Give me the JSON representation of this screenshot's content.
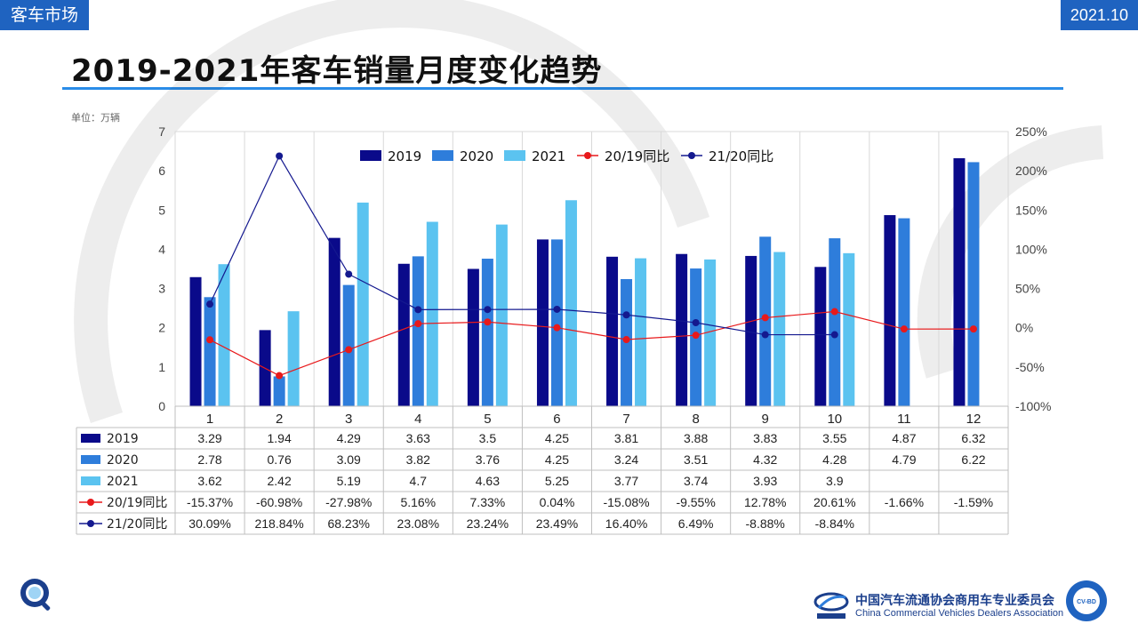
{
  "header": {
    "section": "客车市场",
    "date": "2021.10"
  },
  "title": "2019-2021年客车销量月度变化趋势",
  "unit_note": "单位：万辆",
  "footer": {
    "org_cn": "中国汽车流通协会商用车专业委员会",
    "org_en": "China Commercial Vehicles Dealers Association"
  },
  "colors": {
    "c2019": "#0a0a8a",
    "c2020": "#2e7ddb",
    "c2021": "#5bc3f0",
    "c20_19": "#e8191b",
    "c21_20": "#14198f",
    "accent": "#1f63c0"
  },
  "chart_data": {
    "type": "bar",
    "categories": [
      "1",
      "2",
      "3",
      "4",
      "5",
      "6",
      "7",
      "8",
      "9",
      "10",
      "11",
      "12"
    ],
    "y_left": {
      "min": 0,
      "max": 7,
      "ticks": [
        "0",
        "1",
        "2",
        "3",
        "4",
        "5",
        "6",
        "7"
      ]
    },
    "y_right": {
      "min": -100,
      "max": 250,
      "ticks": [
        "-100%",
        "-50%",
        "0%",
        "50%",
        "100%",
        "150%",
        "200%",
        "250%"
      ]
    },
    "legend_position": "top",
    "series": [
      {
        "name": "2019",
        "kind": "bar",
        "axis": "left",
        "values": [
          3.29,
          1.94,
          4.29,
          3.63,
          3.5,
          4.25,
          3.81,
          3.88,
          3.83,
          3.55,
          4.87,
          6.32
        ],
        "labels": [
          "3.29",
          "1.94",
          "4.29",
          "3.63",
          "3.5",
          "4.25",
          "3.81",
          "3.88",
          "3.83",
          "3.55",
          "4.87",
          "6.32"
        ]
      },
      {
        "name": "2020",
        "kind": "bar",
        "axis": "left",
        "values": [
          2.78,
          0.76,
          3.09,
          3.82,
          3.76,
          4.25,
          3.24,
          3.51,
          4.32,
          4.28,
          4.79,
          6.22
        ],
        "labels": [
          "2.78",
          "0.76",
          "3.09",
          "3.82",
          "3.76",
          "4.25",
          "3.24",
          "3.51",
          "4.32",
          "4.28",
          "4.79",
          "6.22"
        ]
      },
      {
        "name": "2021",
        "kind": "bar",
        "axis": "left",
        "values": [
          3.62,
          2.42,
          5.19,
          4.7,
          4.63,
          5.25,
          3.77,
          3.74,
          3.93,
          3.9,
          null,
          null
        ],
        "labels": [
          "3.62",
          "2.42",
          "5.19",
          "4.7",
          "4.63",
          "5.25",
          "3.77",
          "3.74",
          "3.93",
          "3.9",
          "",
          ""
        ]
      },
      {
        "name": "20/19同比",
        "kind": "line",
        "axis": "right",
        "values": [
          -15.37,
          -60.98,
          -27.98,
          5.16,
          7.33,
          0.04,
          -15.08,
          -9.55,
          12.78,
          20.61,
          -1.66,
          -1.59
        ],
        "labels": [
          "-15.37%",
          "-60.98%",
          "-27.98%",
          "5.16%",
          "7.33%",
          "0.04%",
          "-15.08%",
          "-9.55%",
          "12.78%",
          "20.61%",
          "-1.66%",
          "-1.59%"
        ]
      },
      {
        "name": "21/20同比",
        "kind": "line",
        "axis": "right",
        "values": [
          30.09,
          218.84,
          68.23,
          23.08,
          23.24,
          23.49,
          16.4,
          6.49,
          -8.88,
          -8.84,
          null,
          null
        ],
        "labels": [
          "30.09%",
          "218.84%",
          "68.23%",
          "23.08%",
          "23.24%",
          "23.49%",
          "16.40%",
          "6.49%",
          "-8.88%",
          "-8.84%",
          "",
          ""
        ]
      }
    ]
  }
}
